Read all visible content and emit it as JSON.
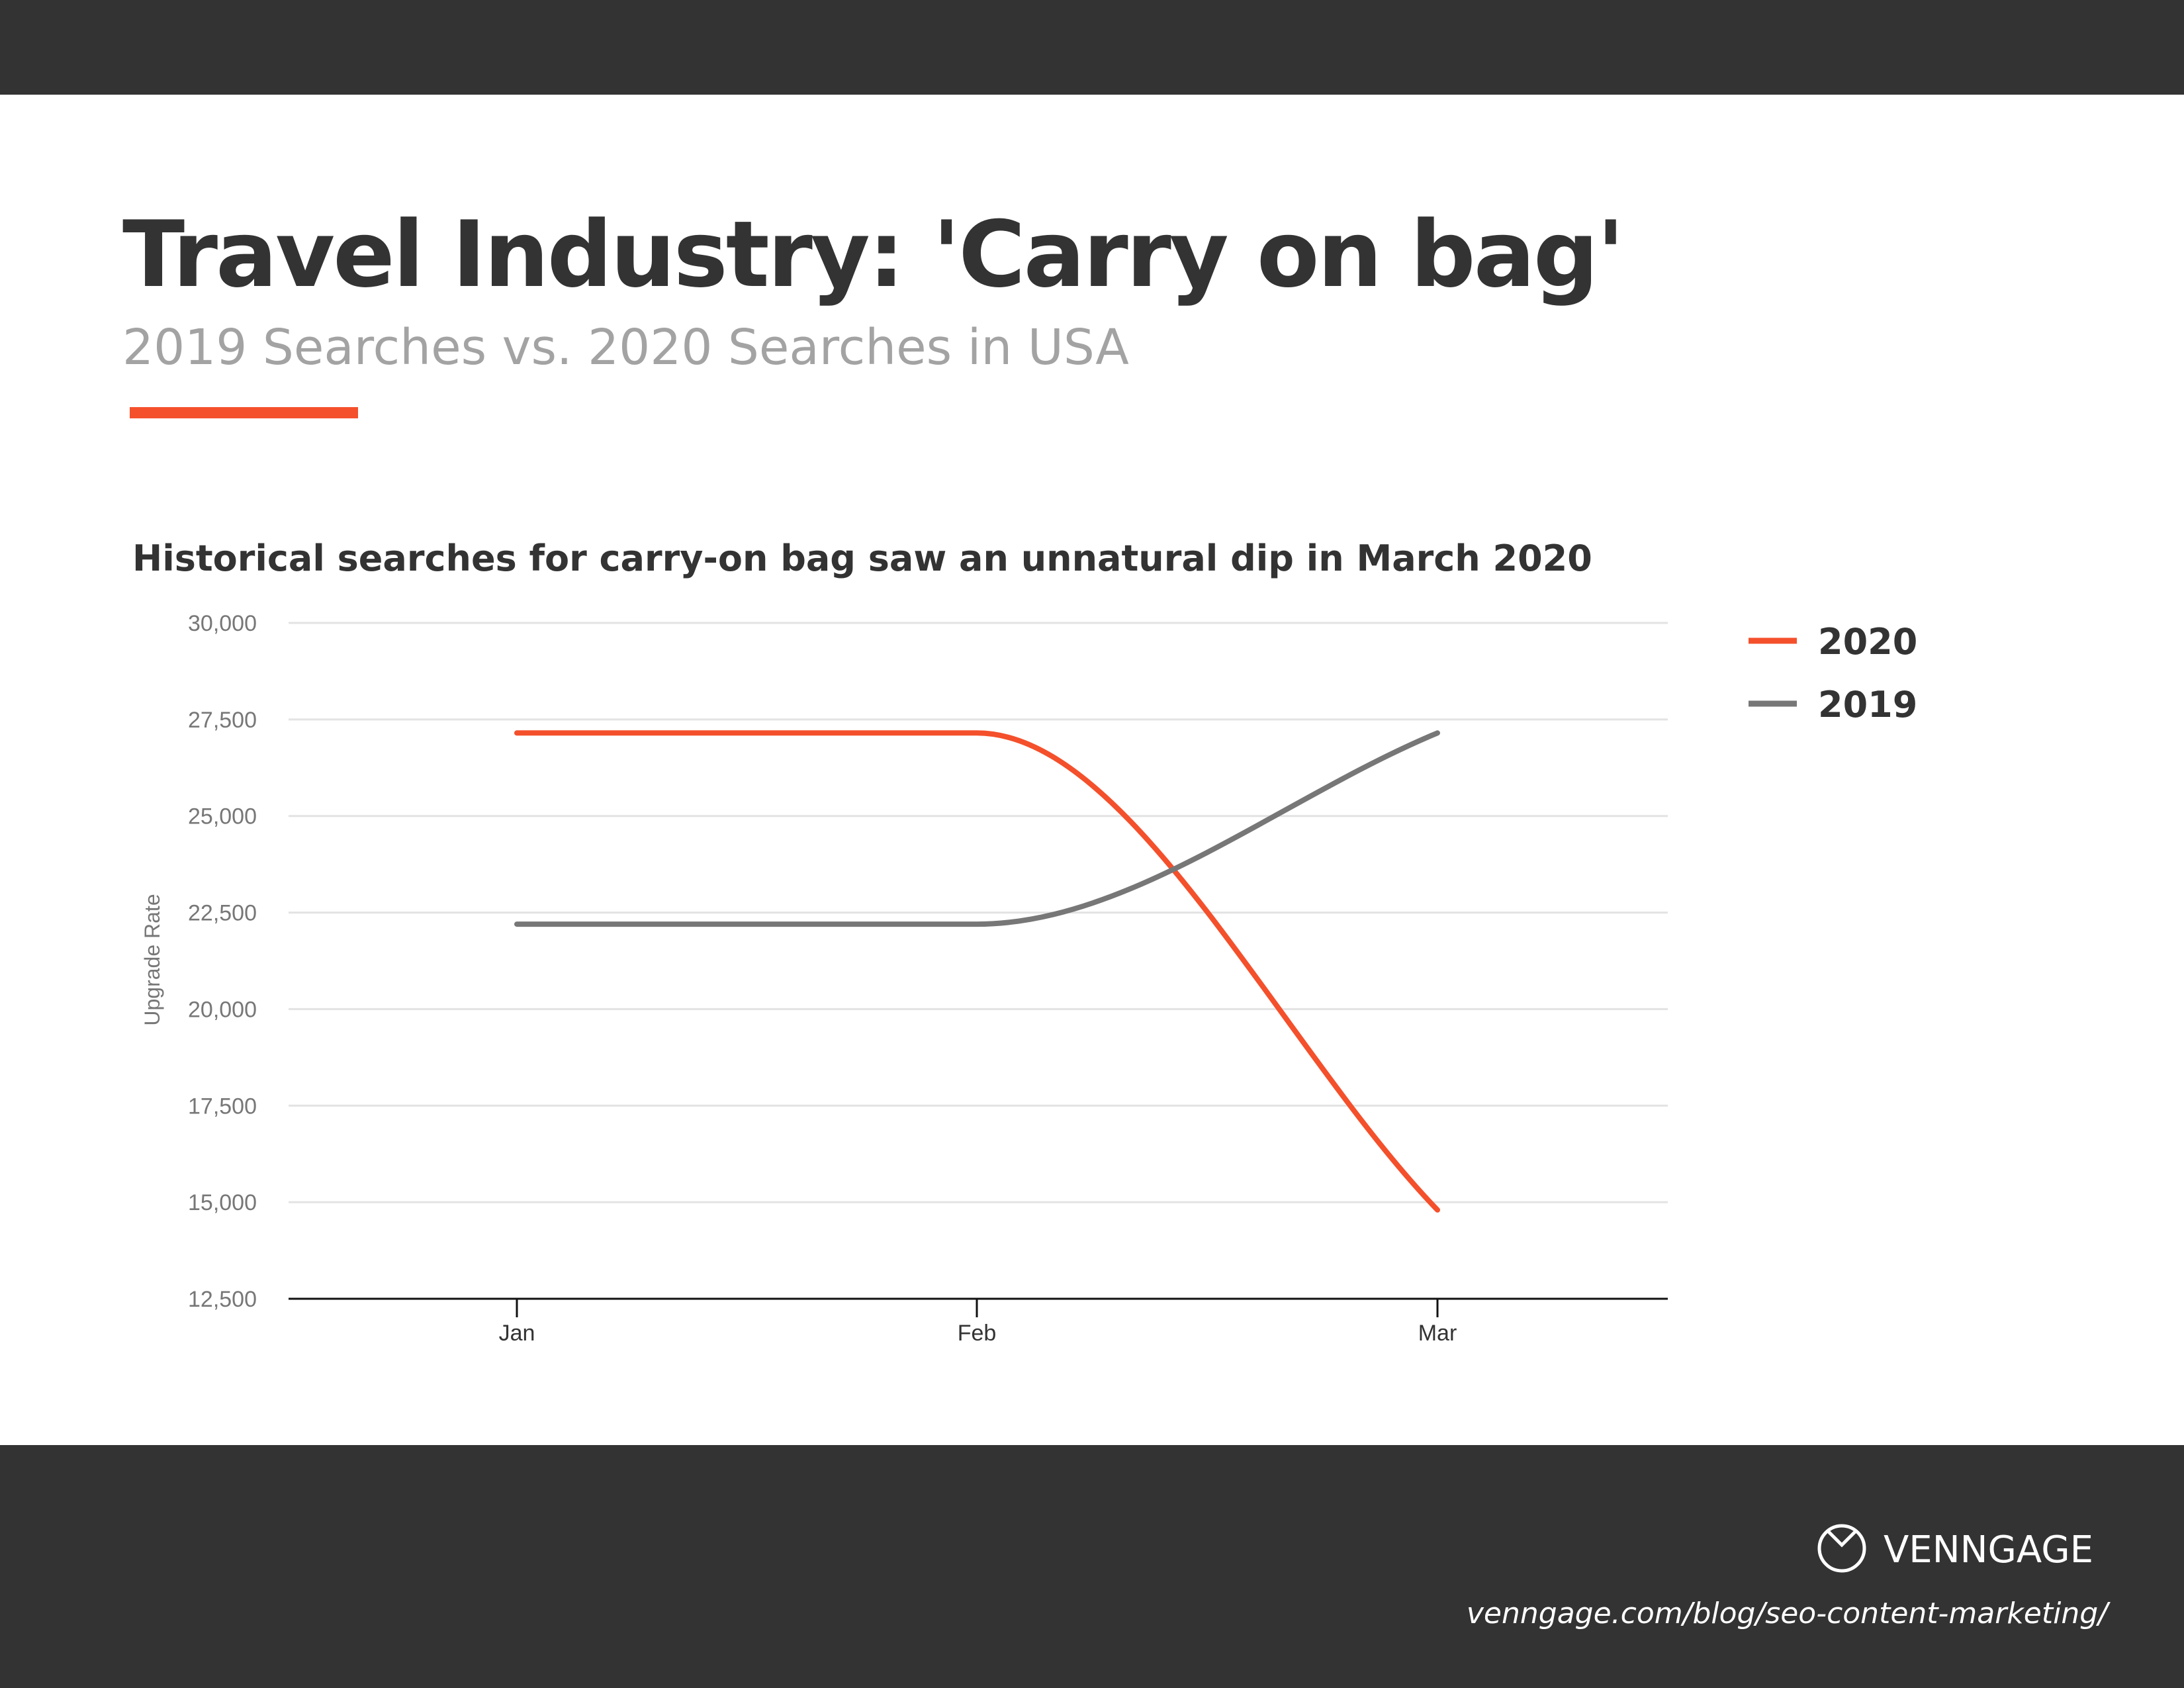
{
  "header": {
    "title": "Travel Industry: 'Carry on bag'",
    "subtitle": "2019 Searches vs. 2020 Searches in USA"
  },
  "colors": {
    "accent": "#f4502c",
    "series2019": "#777777",
    "dark": "#333333"
  },
  "chart_data": {
    "type": "line",
    "title": "Historical searches for carry-on bag saw an unnatural dip in March 2020",
    "xlabel": "",
    "ylabel": "Upgrade Rate",
    "categories": [
      "Jan",
      "Feb",
      "Mar"
    ],
    "ylim": [
      12500,
      30000
    ],
    "yticks": [
      "30,000",
      "27,500",
      "25,000",
      "22,500",
      "20,000",
      "17,500",
      "15,000",
      "12,500"
    ],
    "ytick_values": [
      30000,
      27500,
      25000,
      22500,
      20000,
      17500,
      15000,
      12500
    ],
    "grid": true,
    "legend_position": "top-right",
    "series": [
      {
        "name": "2020",
        "color": "#f4502c",
        "values": [
          27150,
          27150,
          14800
        ]
      },
      {
        "name": "2019",
        "color": "#777777",
        "values": [
          22200,
          22200,
          27150
        ]
      }
    ]
  },
  "footer": {
    "brand": "VENNGAGE",
    "url": "venngage.com/blog/seo-content-marketing/"
  }
}
